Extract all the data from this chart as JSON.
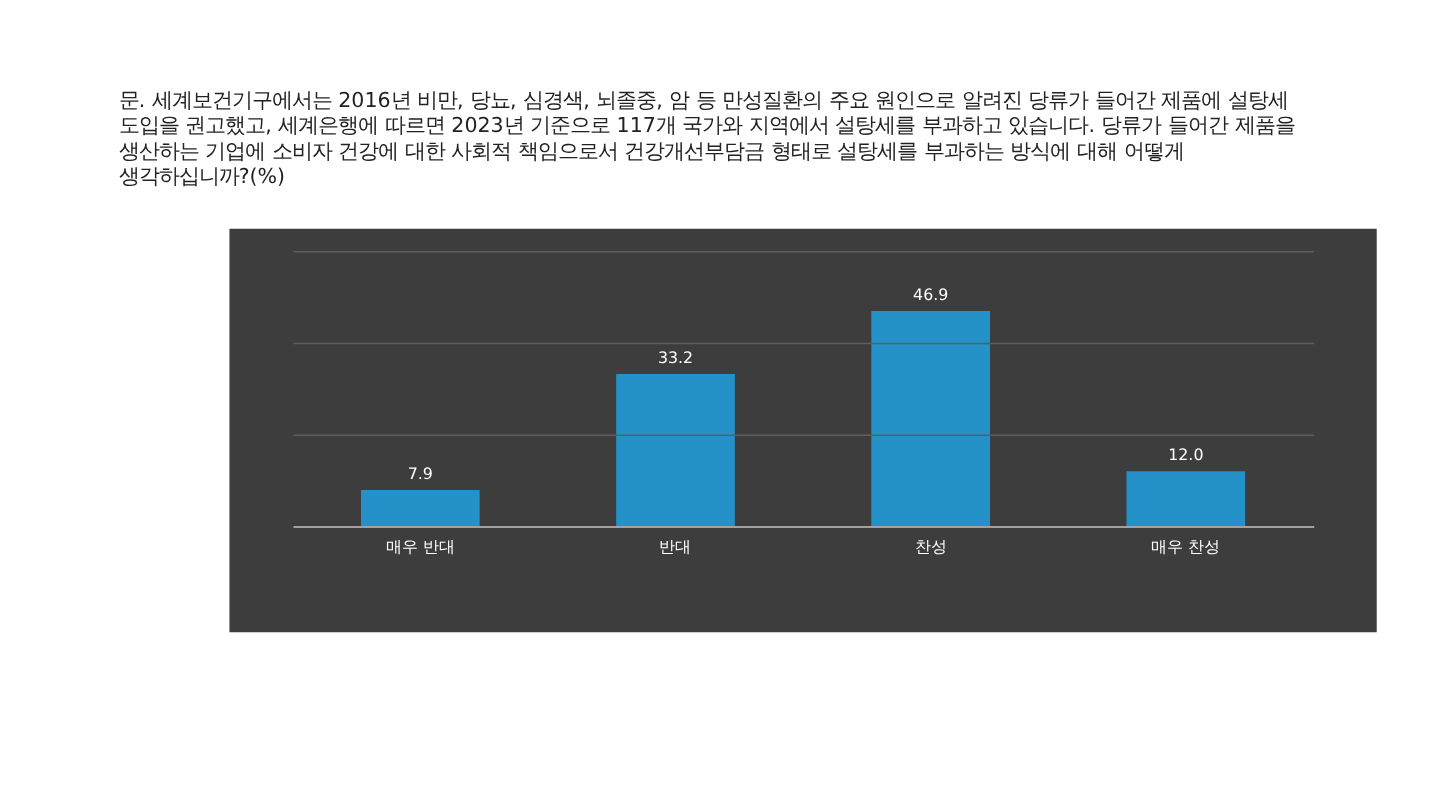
{
  "chart_data": {
    "type": "bar",
    "title": "문. 세계보건기구에서는 2016년 비만, 당뇨, 심경색, 뇌졸중, 암 등 만성질환의 주요 원인으로 알려진 당류가 들어간 제품에 설탕세 도입을 권고했고, 세계은행에 따르면 2023년 기준으로 117개 국가와 지역에서 설탕세를 부과하고 있습니다. 당류가 들어간 제품을 생산하는 기업에 소비자 건강에 대한 사회적 책임으로서 건강개선부담금 형태로 설탕세를 부과하는 방식에 대해 어떻게 생각하십니까?(%)",
    "categories": [
      "매우 반대",
      "반대",
      "찬성",
      "매우 찬성"
    ],
    "values": [
      7.9,
      33.2,
      46.9,
      12.0
    ],
    "value_labels": [
      "7.9",
      "33.2",
      "46.9",
      "12.0"
    ],
    "color": "#2492c8",
    "ylim": [
      0,
      60
    ],
    "yticks": [
      {
        "value": 0,
        "label": null
      },
      {
        "value": 20,
        "label": null
      },
      {
        "value": 40,
        "label": null
      },
      {
        "value": 60,
        "label": null
      }
    ],
    "grid": "y",
    "tick_labels": "x"
  }
}
